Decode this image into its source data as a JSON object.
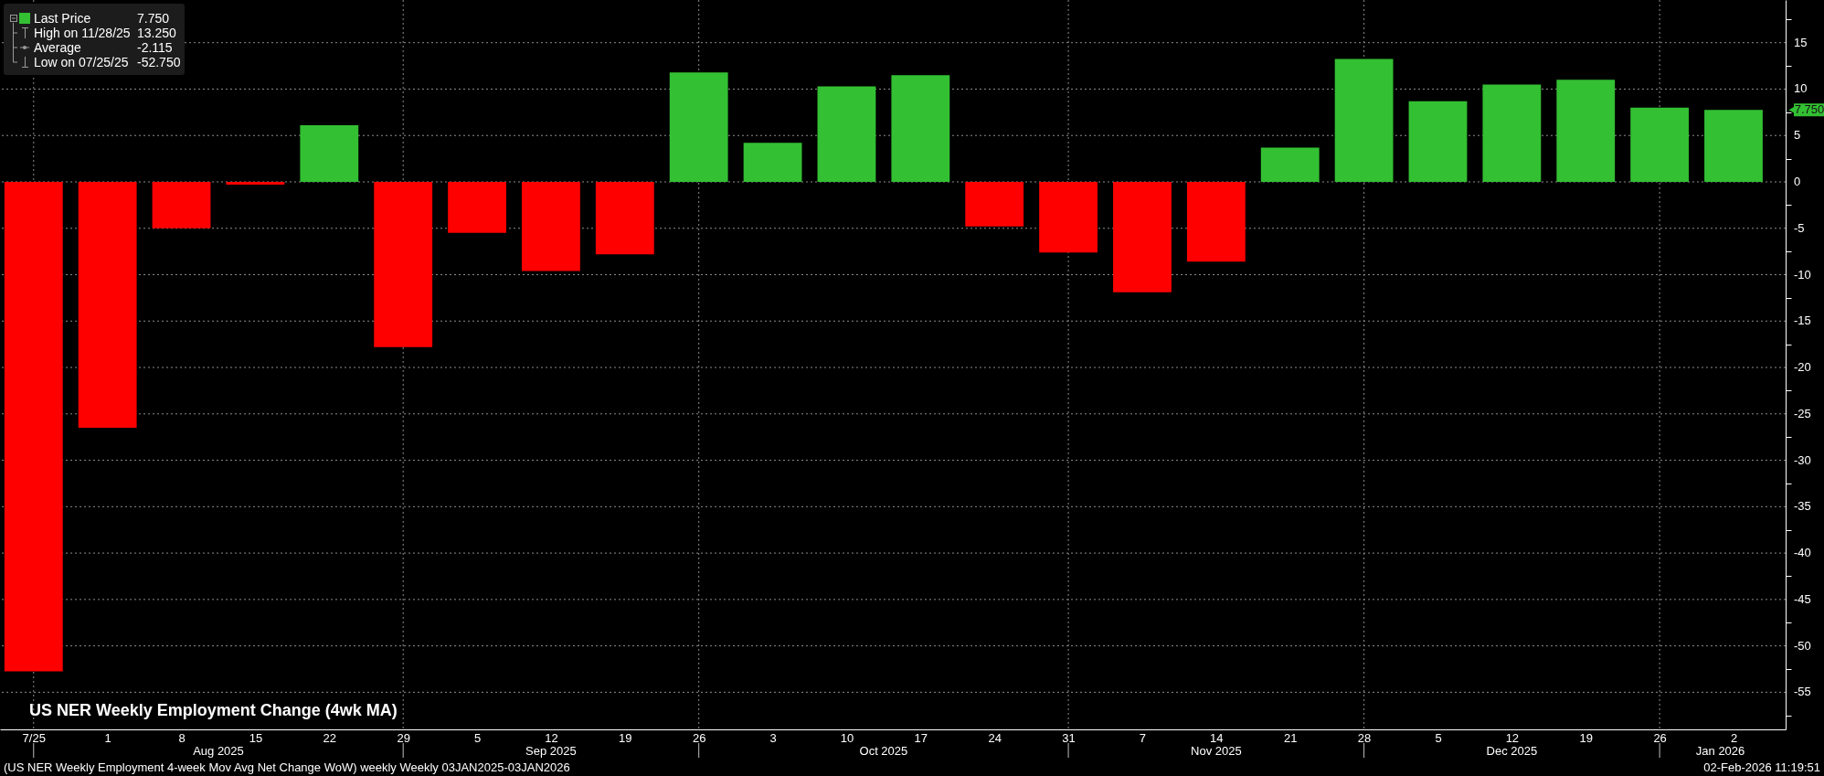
{
  "chart_data": {
    "type": "bar",
    "title": "US NER Weekly Employment Change (4wk MA)",
    "x": [
      "2025-07-25",
      "2025-08-01",
      "2025-08-08",
      "2025-08-15",
      "2025-08-22",
      "2025-08-29",
      "2025-09-05",
      "2025-09-12",
      "2025-09-19",
      "2025-09-26",
      "2025-10-03",
      "2025-10-10",
      "2025-10-17",
      "2025-10-24",
      "2025-10-31",
      "2025-11-07",
      "2025-11-14",
      "2025-11-21",
      "2025-11-28",
      "2025-12-05",
      "2025-12-12",
      "2025-12-19",
      "2025-12-26",
      "2026-01-02"
    ],
    "values": [
      -52.75,
      -26.5,
      -5.0,
      -0.3,
      6.1,
      -17.8,
      -5.5,
      -9.6,
      -7.8,
      11.8,
      4.2,
      10.3,
      11.5,
      -4.8,
      -7.6,
      -11.9,
      -8.6,
      3.7,
      13.25,
      8.7,
      10.5,
      11.0,
      8.0,
      7.75
    ],
    "colors": [
      "#ff0000",
      "#ff0000",
      "#ff0000",
      "#ff0000",
      "#33c033",
      "#ff0000",
      "#ff0000",
      "#ff0000",
      "#ff0000",
      "#33c033",
      "#33c033",
      "#33c033",
      "#33c033",
      "#ff0000",
      "#ff0000",
      "#ff0000",
      "#ff0000",
      "#33c033",
      "#33c033",
      "#33c033",
      "#33c033",
      "#33c033",
      "#33c033",
      "#33c033"
    ],
    "xlim": [
      "2025-07-22T06:00",
      "2026-01-06T12:00"
    ],
    "xticks": [
      {
        "value": "2025-07-25",
        "label": "7/25"
      },
      {
        "value": "2025-08-01",
        "label": "1"
      },
      {
        "value": "2025-08-08",
        "label": "8"
      },
      {
        "value": "2025-08-15",
        "label": "15"
      },
      {
        "value": "2025-08-22",
        "label": "22"
      },
      {
        "value": "2025-08-29",
        "label": "29"
      },
      {
        "value": "2025-09-05",
        "label": "5"
      },
      {
        "value": "2025-09-12",
        "label": "12"
      },
      {
        "value": "2025-09-19",
        "label": "19"
      },
      {
        "value": "2025-09-26",
        "label": "26"
      },
      {
        "value": "2025-10-03",
        "label": "3"
      },
      {
        "value": "2025-10-10",
        "label": "10"
      },
      {
        "value": "2025-10-17",
        "label": "17"
      },
      {
        "value": "2025-10-24",
        "label": "24"
      },
      {
        "value": "2025-10-31",
        "label": "31"
      },
      {
        "value": "2025-11-07",
        "label": "7"
      },
      {
        "value": "2025-11-14",
        "label": "14"
      },
      {
        "value": "2025-11-21",
        "label": "21"
      },
      {
        "value": "2025-11-28",
        "label": "28"
      },
      {
        "value": "2025-12-05",
        "label": "5"
      },
      {
        "value": "2025-12-12",
        "label": "12"
      },
      {
        "value": "2025-12-19",
        "label": "19"
      },
      {
        "value": "2025-12-26",
        "label": "26"
      },
      {
        "value": "2026-01-02",
        "label": "2"
      },
      {
        "value": "2025-07-25",
        "label": null
      },
      {
        "value": "2025-08-29",
        "label": null
      },
      {
        "value": "2025-09-26",
        "label": null
      },
      {
        "value": "2025-10-31",
        "label": null
      },
      {
        "value": "2025-11-28",
        "label": null
      },
      {
        "value": "2025-12-26",
        "label": null
      }
    ],
    "ylim": [
      -59,
      19.6
    ],
    "yticks": [
      {
        "value": 17.5,
        "label": null
      },
      15,
      {
        "value": 12.5,
        "label": null
      },
      10,
      {
        "value": 7.5,
        "label": null
      },
      5,
      {
        "value": 2.5,
        "label": null
      },
      0,
      {
        "value": -2.5,
        "label": null
      },
      -5,
      {
        "value": -7.5,
        "label": null
      },
      -10,
      {
        "value": -12.5,
        "label": null
      },
      -15,
      {
        "value": -17.5,
        "label": null
      },
      -20,
      {
        "value": -22.5,
        "label": null
      },
      -25,
      {
        "value": -27.5,
        "label": null
      },
      -30,
      {
        "value": -32.5,
        "label": null
      },
      -35,
      {
        "value": -37.5,
        "label": null
      },
      -40,
      {
        "value": -42.5,
        "label": null
      },
      -45,
      {
        "value": -47.5,
        "label": null
      },
      -50,
      {
        "value": -52.5,
        "label": null
      },
      -55,
      {
        "value": -57.5,
        "label": null
      }
    ],
    "grid": true,
    "annotations": [
      "Last Price",
      "7.750",
      "High on 11/28/25",
      "13.250",
      "Average",
      "-2.115",
      "Low on 07/25/25",
      "-52.750",
      "7.750",
      "Aug 2025",
      "Sep 2025",
      "Oct 2025",
      "Nov 2025",
      "Dec 2025",
      "Jan 2026",
      "(US NER Weekly Employment 4-week Mov Avg Net Change WoW) weekly Weekly 03JAN2025-03JAN2026",
      "02-Feb-2026 11:19:51"
    ]
  }
}
